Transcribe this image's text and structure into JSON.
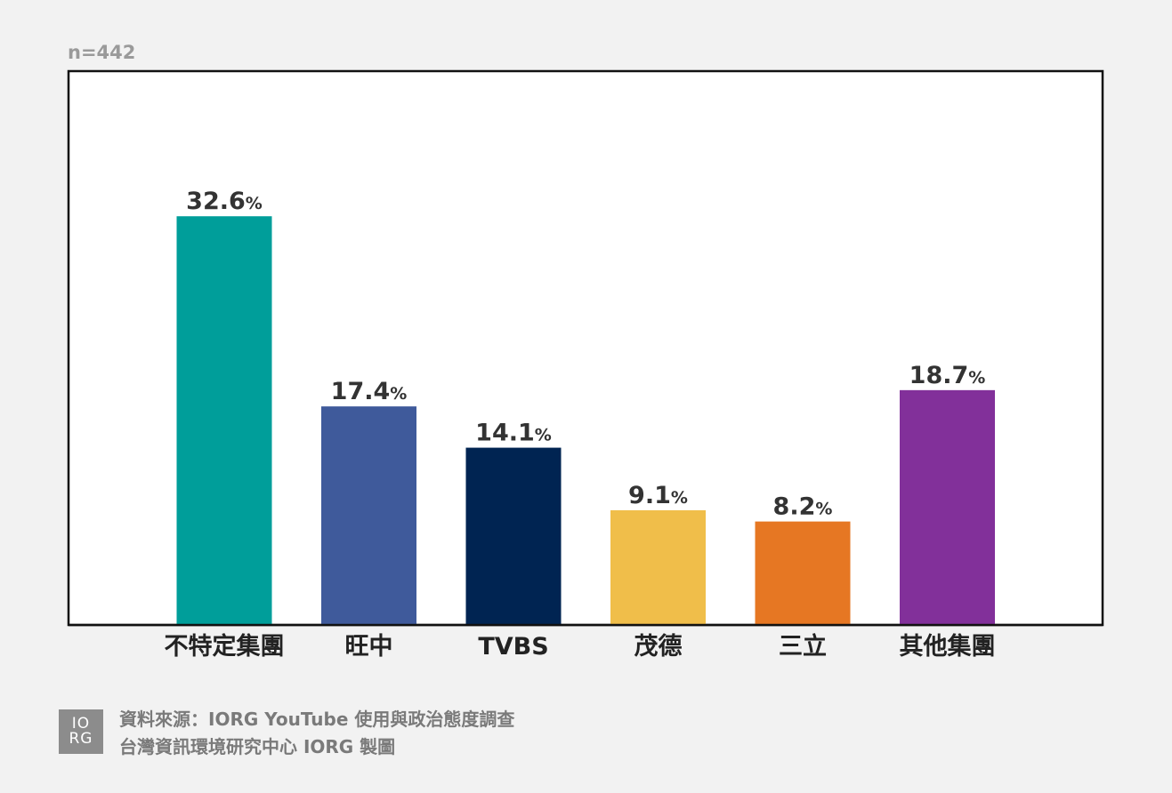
{
  "sample_size_label": "n=442",
  "chart_data": {
    "type": "bar",
    "categories": [
      "不特定集團",
      "旺中",
      "TVBS",
      "茂德",
      "三立",
      "其他集團"
    ],
    "values": [
      32.6,
      17.4,
      14.1,
      9.1,
      8.2,
      18.7
    ],
    "value_labels": [
      "32.6",
      "17.4",
      "14.1",
      "9.1",
      "8.2",
      "18.7"
    ],
    "value_suffix": "%",
    "colors": [
      "#009e9a",
      "#3f5a9b",
      "#002452",
      "#f0be4a",
      "#e67723",
      "#82309a"
    ],
    "title": "",
    "xlabel": "",
    "ylabel": "",
    "ylim": [
      0,
      44.2
    ],
    "grid": false,
    "legend": "none"
  },
  "footer": {
    "logo_line1": "IO",
    "logo_line2": "RG",
    "source_line1": "資料來源：IORG YouTube 使用與政治態度調查",
    "source_line2": "台灣資訊環境研究中心 IORG 製圖"
  }
}
